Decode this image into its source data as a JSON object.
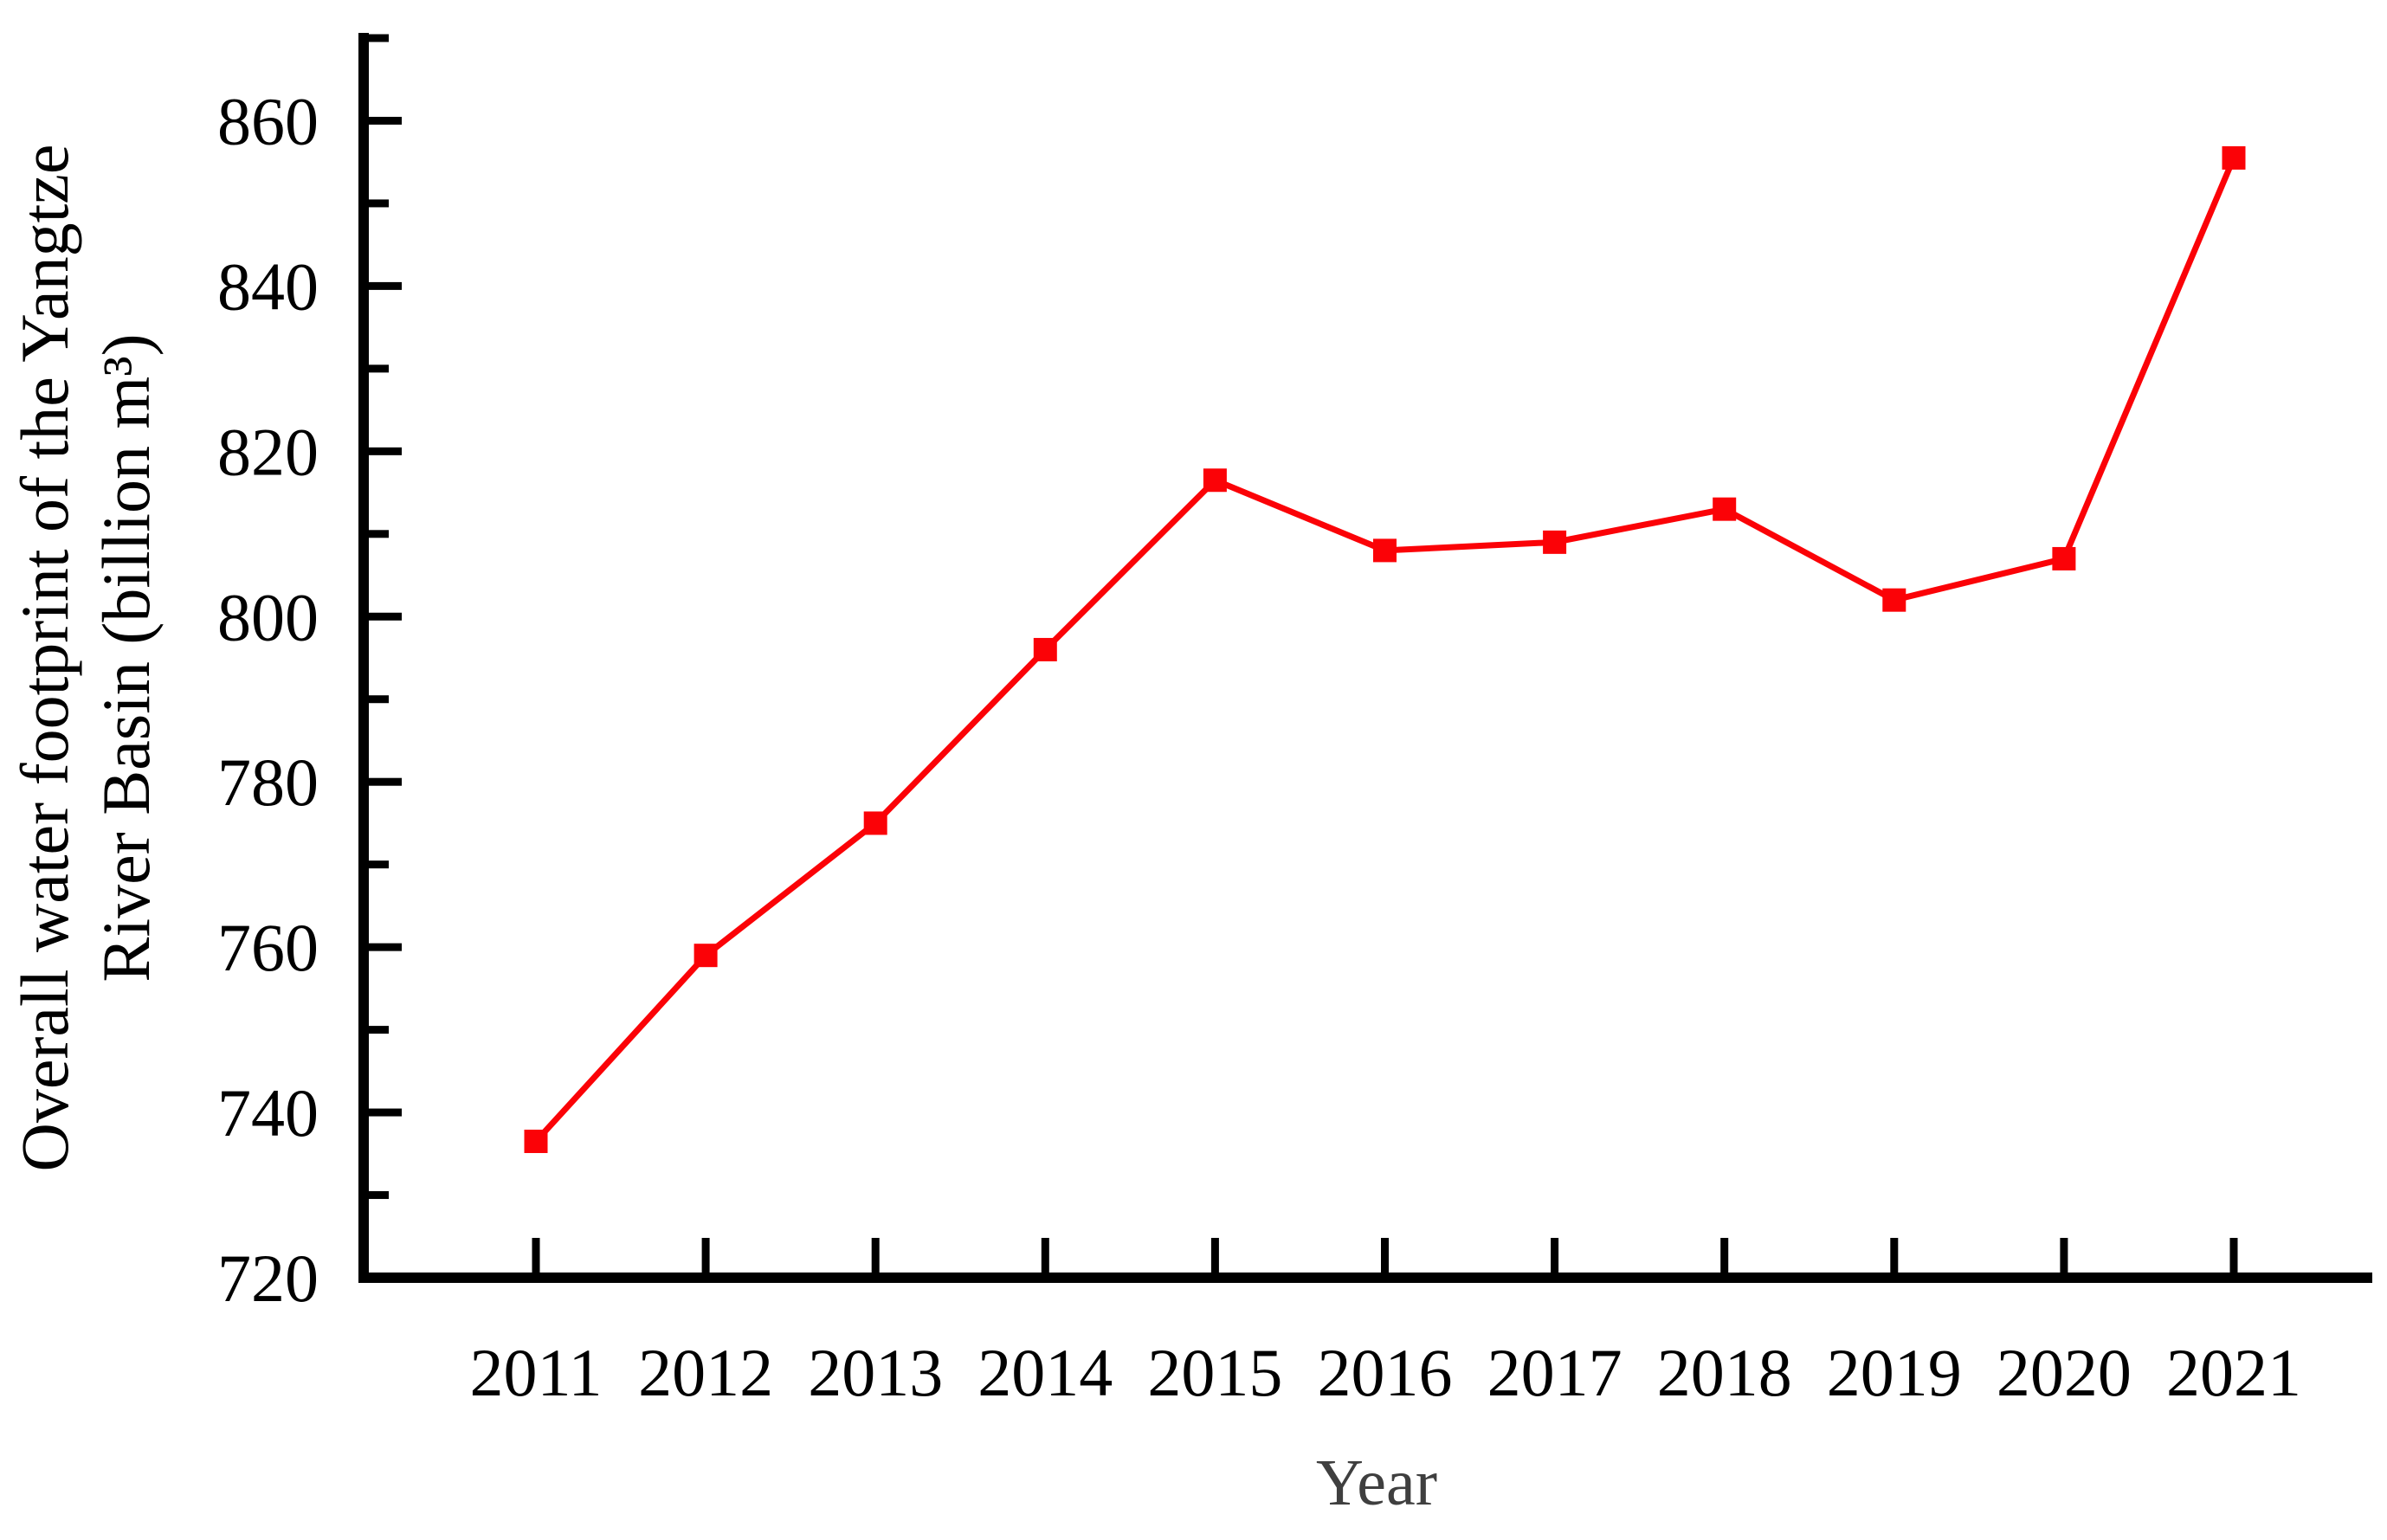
{
  "chart": {
    "xlabel": "Year",
    "ylabel_line1": "Overall water footprint of the Yangtze",
    "ylabel_line2": "River Basin (billion m³)"
  },
  "chart_data": {
    "type": "line",
    "title": "",
    "x": [
      2011,
      2012,
      2013,
      2014,
      2015,
      2016,
      2017,
      2018,
      2019,
      2020,
      2021
    ],
    "series": [
      {
        "name": "Overall water footprint of the Yangtze River Basin (billion m³)",
        "values": [
          736.5,
          759,
          775,
          796,
          816.5,
          808,
          809,
          813,
          802,
          807,
          855.5
        ]
      }
    ],
    "xlabel": "Year",
    "ylabel": "Overall water footprint of the Yangtze River Basin (billion m³)",
    "ylim": [
      720,
      870
    ],
    "xtick_labels": [
      "2011",
      "2012",
      "2013",
      "2014",
      "2015",
      "2016",
      "2017",
      "2018",
      "2019",
      "2020",
      "2021"
    ],
    "y_major_ticks": [
      720,
      740,
      760,
      780,
      800,
      820,
      840,
      860
    ],
    "y_minor_ticks": [
      730,
      750,
      770,
      790,
      810,
      830,
      850,
      870
    ],
    "grid": false,
    "legend": "none",
    "line_color": "#fb0207",
    "marker": "square",
    "marker_color": "#fb0207",
    "axis_color": "#000000",
    "tick_label_color": "#000000",
    "xlabel_color": "#3f3f3f"
  }
}
